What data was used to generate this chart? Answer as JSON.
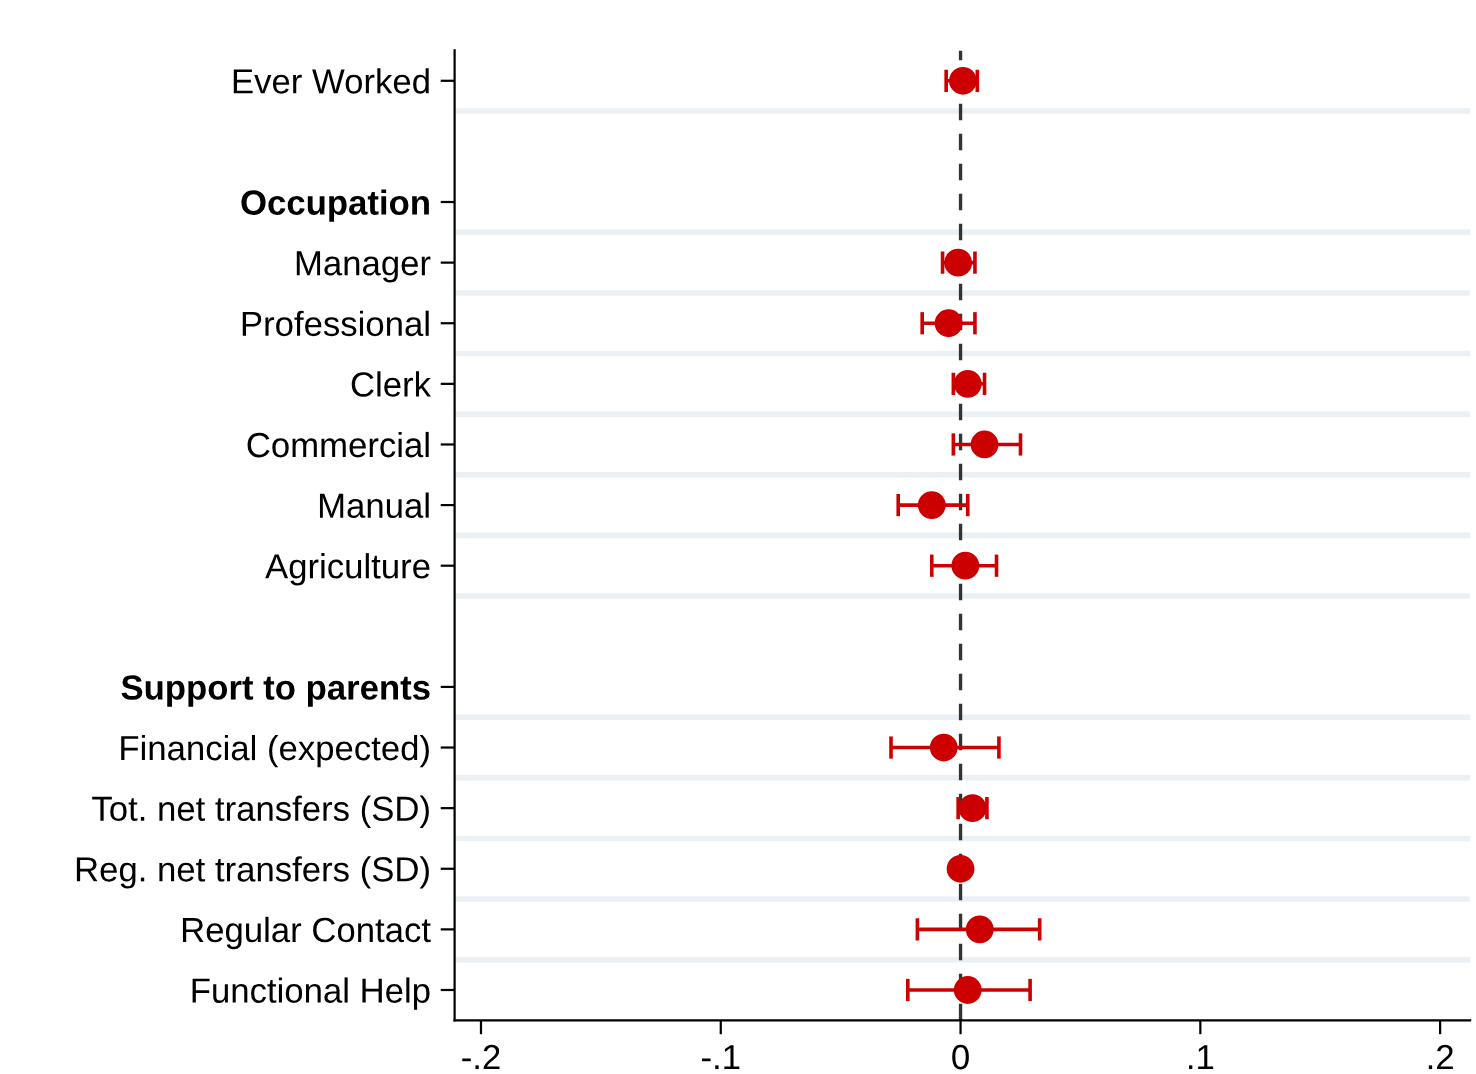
{
  "chart_data": {
    "type": "scatter",
    "orientation": "horizontal",
    "categories": [
      "Ever Worked",
      null,
      "Occupation",
      "Manager",
      "Professional",
      "Clerk",
      "Commercial",
      "Manual",
      "Agriculture",
      null,
      "Support to parents",
      "Financial (expected)",
      "Tot. net transfers (SD)",
      "Reg. net transfers (SD)",
      "Regular Contact",
      "Functional Help"
    ],
    "series": [
      {
        "color": "#cc0000",
        "values": [
          0.001,
          null,
          null,
          -0.001,
          -0.005,
          0.003,
          0.01,
          -0.012,
          0.002,
          null,
          null,
          -0.007,
          0.005,
          0.0,
          0.008,
          0.003
        ],
        "errors": [
          [
            -0.006,
            0.007
          ],
          null,
          null,
          [
            -0.0075,
            0.006
          ],
          [
            -0.016,
            0.006
          ],
          [
            -0.003,
            0.01
          ],
          [
            -0.003,
            0.025
          ],
          [
            -0.026,
            0.003
          ],
          [
            -0.012,
            0.015
          ],
          null,
          null,
          [
            -0.029,
            0.016
          ],
          [
            -0.001,
            0.011
          ],
          null,
          [
            -0.018,
            0.033
          ],
          [
            -0.022,
            0.029
          ]
        ]
      }
    ],
    "xlim": [
      -0.211,
      0.2125
    ],
    "xticks": [
      {
        "value": -0.2,
        "label": "-.2"
      },
      {
        "value": -0.1,
        "label": "-.1"
      },
      0,
      {
        "value": 0.1,
        "label": ".1"
      },
      {
        "value": 0.2,
        "label": ".2"
      }
    ],
    "ref_lines": [
      {
        "axis": "x",
        "value": 0,
        "color": "#333333",
        "line_style": "dashed"
      }
    ],
    "grid": "y",
    "marker": "circle",
    "legend": false
  }
}
